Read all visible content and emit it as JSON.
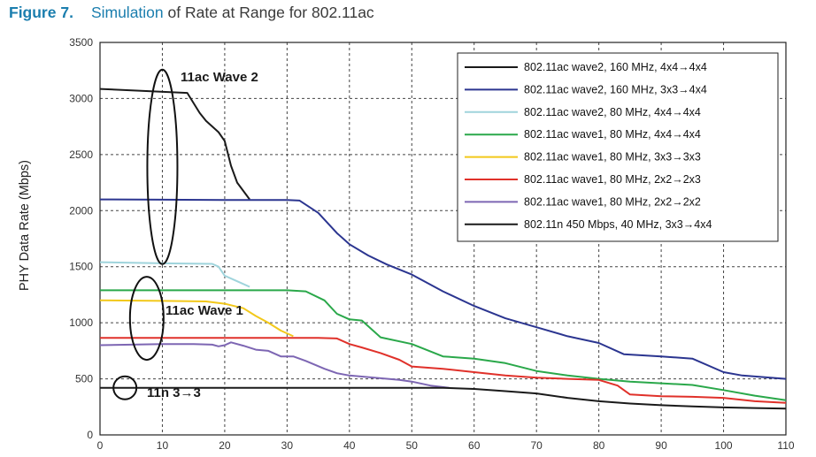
{
  "caption": {
    "figure_label": "Figure 7.",
    "title_link": "Simulation",
    "title_rest": " of Rate at Range for 802.11ac"
  },
  "colors": {
    "caption_blue": "#1b7eae",
    "grid": "#444444"
  },
  "chart_data": {
    "type": "line",
    "ylabel": "PHY Data Rate (Mbps)",
    "xlabel": "",
    "xlim": [
      0,
      110
    ],
    "ylim": [
      0,
      3500
    ],
    "x_ticks": [
      0,
      10,
      20,
      30,
      40,
      50,
      60,
      70,
      80,
      90,
      100,
      110
    ],
    "y_ticks": [
      0,
      500,
      1000,
      1500,
      2000,
      2500,
      3000,
      3500
    ],
    "grid": true,
    "legend_position": "top-right",
    "series": [
      {
        "name": "802.11ac wave2, 160 MHz, 4x4→4x4",
        "color": "#1a1a1a",
        "x": [
          0,
          14,
          16,
          17,
          19,
          20,
          21,
          22,
          24
        ],
        "y": [
          3085,
          3050,
          2870,
          2800,
          2700,
          2620,
          2400,
          2250,
          2100
        ]
      },
      {
        "name": "802.11ac wave2, 160 MHz, 3x3→4x4",
        "color": "#2b3590",
        "x": [
          0,
          10,
          20,
          30,
          32,
          35,
          38,
          40,
          43,
          46,
          50,
          55,
          60,
          65,
          70,
          75,
          80,
          84,
          90,
          95,
          100,
          103,
          110
        ],
        "y": [
          2100,
          2098,
          2095,
          2095,
          2090,
          1980,
          1800,
          1700,
          1600,
          1520,
          1430,
          1280,
          1150,
          1040,
          960,
          880,
          820,
          720,
          700,
          680,
          560,
          530,
          500
        ]
      },
      {
        "name": "802.11ac wave2, 80 MHz, 4x4→4x4",
        "color": "#9fd4dc",
        "x": [
          0,
          10,
          18,
          19,
          20,
          22,
          24
        ],
        "y": [
          1540,
          1530,
          1525,
          1500,
          1420,
          1370,
          1320
        ]
      },
      {
        "name": "802.11ac wave1, 80 MHz, 4x4→4x4",
        "color": "#2aa84a",
        "x": [
          0,
          10,
          20,
          30,
          33,
          36,
          38,
          40,
          42,
          45,
          50,
          55,
          60,
          65,
          70,
          75,
          80,
          85,
          90,
          95,
          100,
          105,
          110
        ],
        "y": [
          1290,
          1290,
          1290,
          1290,
          1280,
          1200,
          1080,
          1030,
          1020,
          870,
          810,
          700,
          680,
          640,
          570,
          530,
          500,
          475,
          460,
          445,
          400,
          350,
          310
        ]
      },
      {
        "name": "802.11ac wave1, 80 MHz, 3x3→3x3",
        "color": "#f2c81a",
        "x": [
          0,
          10,
          17,
          20,
          23,
          25,
          27,
          29,
          31
        ],
        "y": [
          1200,
          1195,
          1190,
          1170,
          1130,
          1060,
          1000,
          930,
          880
        ]
      },
      {
        "name": "802.11ac wave1, 80 MHz, 2x2→2x3",
        "color": "#e0312a",
        "x": [
          0,
          10,
          20,
          30,
          35,
          38,
          40,
          42,
          45,
          48,
          50,
          55,
          60,
          65,
          70,
          75,
          80,
          83,
          85,
          90,
          95,
          100,
          105,
          110
        ],
        "y": [
          865,
          865,
          865,
          865,
          865,
          860,
          810,
          780,
          730,
          670,
          610,
          590,
          560,
          530,
          510,
          500,
          490,
          440,
          360,
          345,
          340,
          330,
          300,
          285
        ]
      },
      {
        "name": "802.11ac wave1, 80 MHz, 2x2→2x2",
        "color": "#7d66b3",
        "x": [
          0,
          5,
          10,
          15,
          18,
          19,
          20,
          21,
          23,
          25,
          27,
          29,
          31,
          33,
          36,
          38,
          40,
          45,
          48,
          50,
          53,
          56
        ],
        "y": [
          800,
          805,
          810,
          810,
          805,
          790,
          800,
          825,
          795,
          760,
          750,
          700,
          700,
          660,
          590,
          550,
          530,
          505,
          490,
          475,
          440,
          420
        ]
      },
      {
        "name": "802.11n 450 Mbps, 40 MHz, 3x3→4x4",
        "color": "#1a1a1a",
        "x": [
          0,
          10,
          20,
          30,
          40,
          50,
          55,
          60,
          65,
          70,
          75,
          80,
          85,
          90,
          95,
          100,
          105,
          110
        ],
        "y": [
          420,
          420,
          420,
          420,
          420,
          420,
          420,
          410,
          390,
          370,
          330,
          300,
          280,
          265,
          255,
          245,
          240,
          235
        ]
      }
    ],
    "annotations": [
      {
        "text": "11ac Wave 2"
      },
      {
        "text": "11ac Wave 1"
      },
      {
        "text": "11n 3→3"
      }
    ]
  }
}
